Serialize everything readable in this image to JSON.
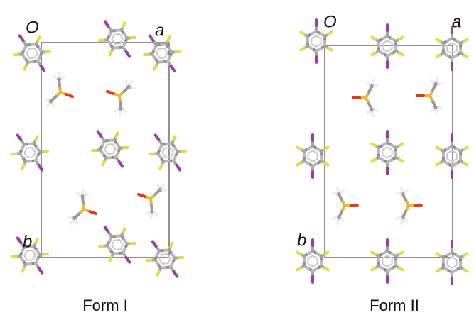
{
  "panels": [
    {
      "origin_label": "O",
      "a_label": "a",
      "b_label": "b",
      "caption": "Form I"
    },
    {
      "origin_label": "O",
      "a_label": "a",
      "b_label": "b",
      "caption": "Form II"
    }
  ]
}
